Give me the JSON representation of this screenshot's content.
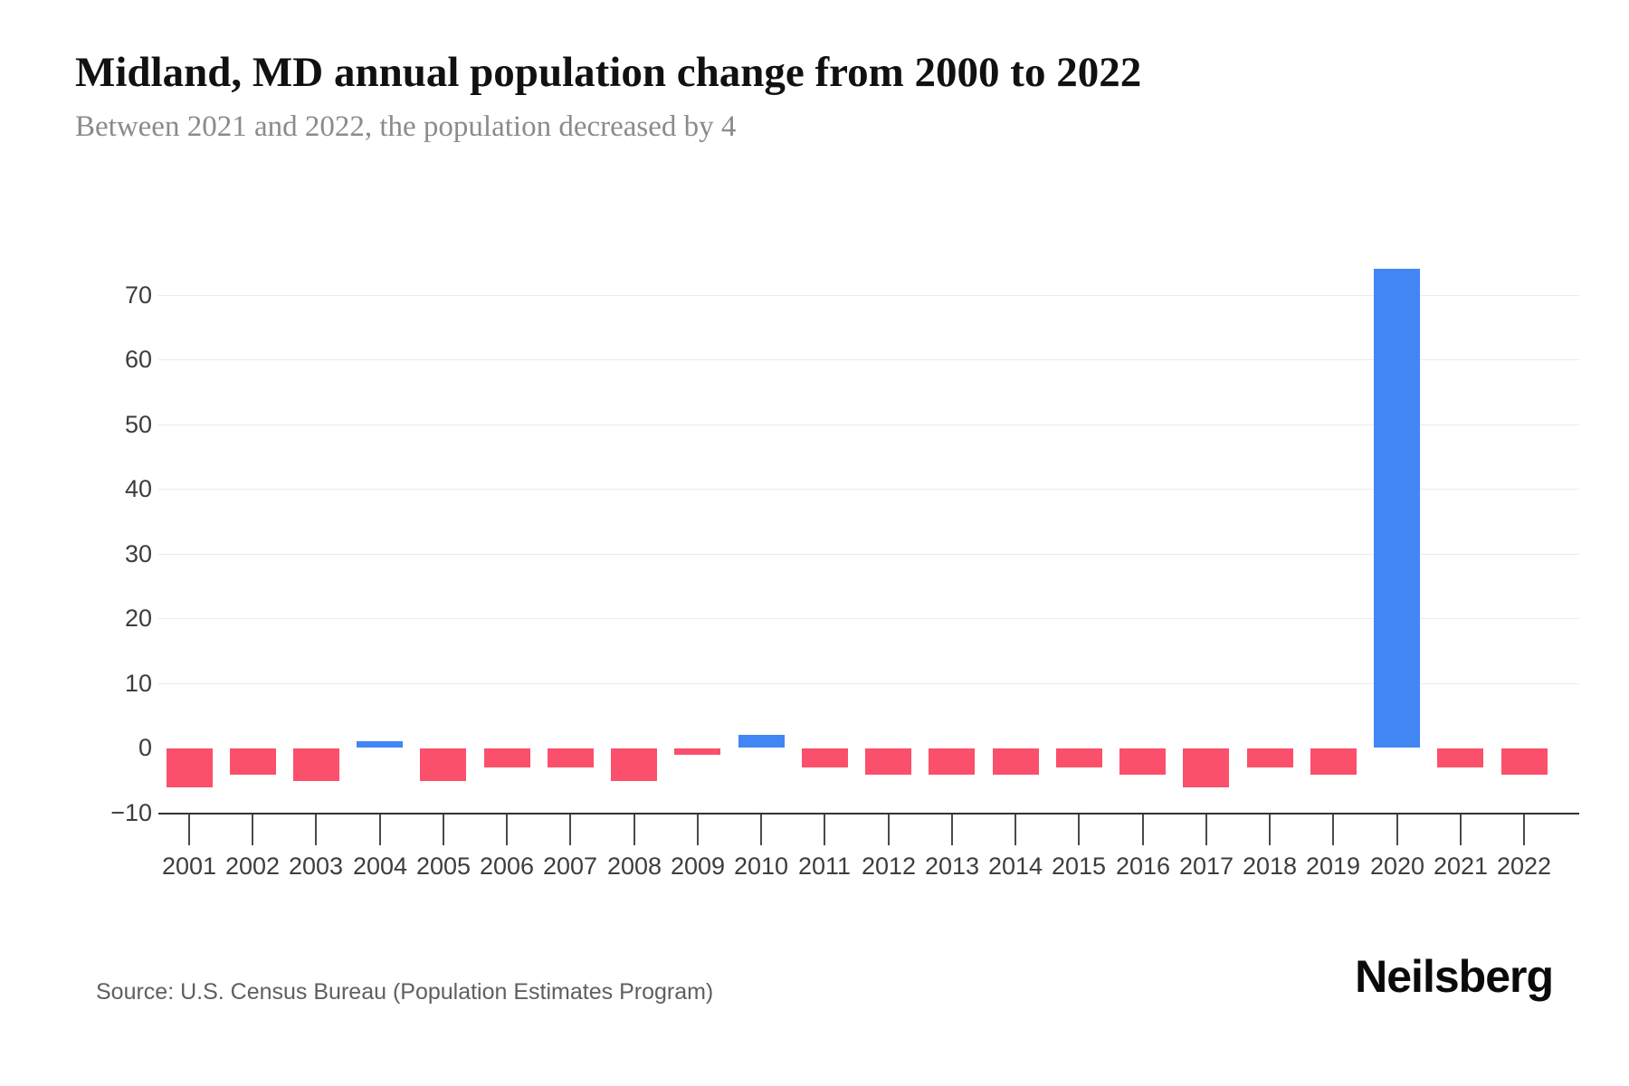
{
  "header": {
    "title": "Midland, MD annual population change from 2000 to 2022",
    "subtitle": "Between 2021 and 2022, the population decreased by 4"
  },
  "footer": {
    "source": "Source: U.S. Census Bureau (Population Estimates Program)",
    "brand": "Neilsberg"
  },
  "chart_data": {
    "type": "bar",
    "title": "Midland, MD annual population change from 2000 to 2022",
    "categories": [
      "2001",
      "2002",
      "2003",
      "2004",
      "2005",
      "2006",
      "2007",
      "2008",
      "2009",
      "2010",
      "2011",
      "2012",
      "2013",
      "2014",
      "2015",
      "2016",
      "2017",
      "2018",
      "2019",
      "2020",
      "2021",
      "2022"
    ],
    "values": [
      -6,
      -4,
      -5,
      1,
      -5,
      -3,
      -3,
      -5,
      -1,
      2,
      -3,
      -4,
      -4,
      -4,
      -3,
      -4,
      -6,
      -3,
      -4,
      74,
      -3,
      -4
    ],
    "xlabel": "",
    "ylabel": "",
    "ylim": [
      -10,
      78
    ],
    "yticks": [
      {
        "value": 70,
        "label": "70"
      },
      {
        "value": 60,
        "label": "60"
      },
      {
        "value": 50,
        "label": "50"
      },
      {
        "value": 40,
        "label": "40"
      },
      {
        "value": 30,
        "label": "30"
      },
      {
        "value": 20,
        "label": "20"
      },
      {
        "value": 10,
        "label": "10"
      },
      {
        "value": 0,
        "label": "0"
      },
      {
        "value": -10,
        "label": "−10"
      }
    ],
    "grid": "horizontal-above-zero",
    "legend": false,
    "positive_color": "#4285F4",
    "negative_color": "#FB506B"
  }
}
